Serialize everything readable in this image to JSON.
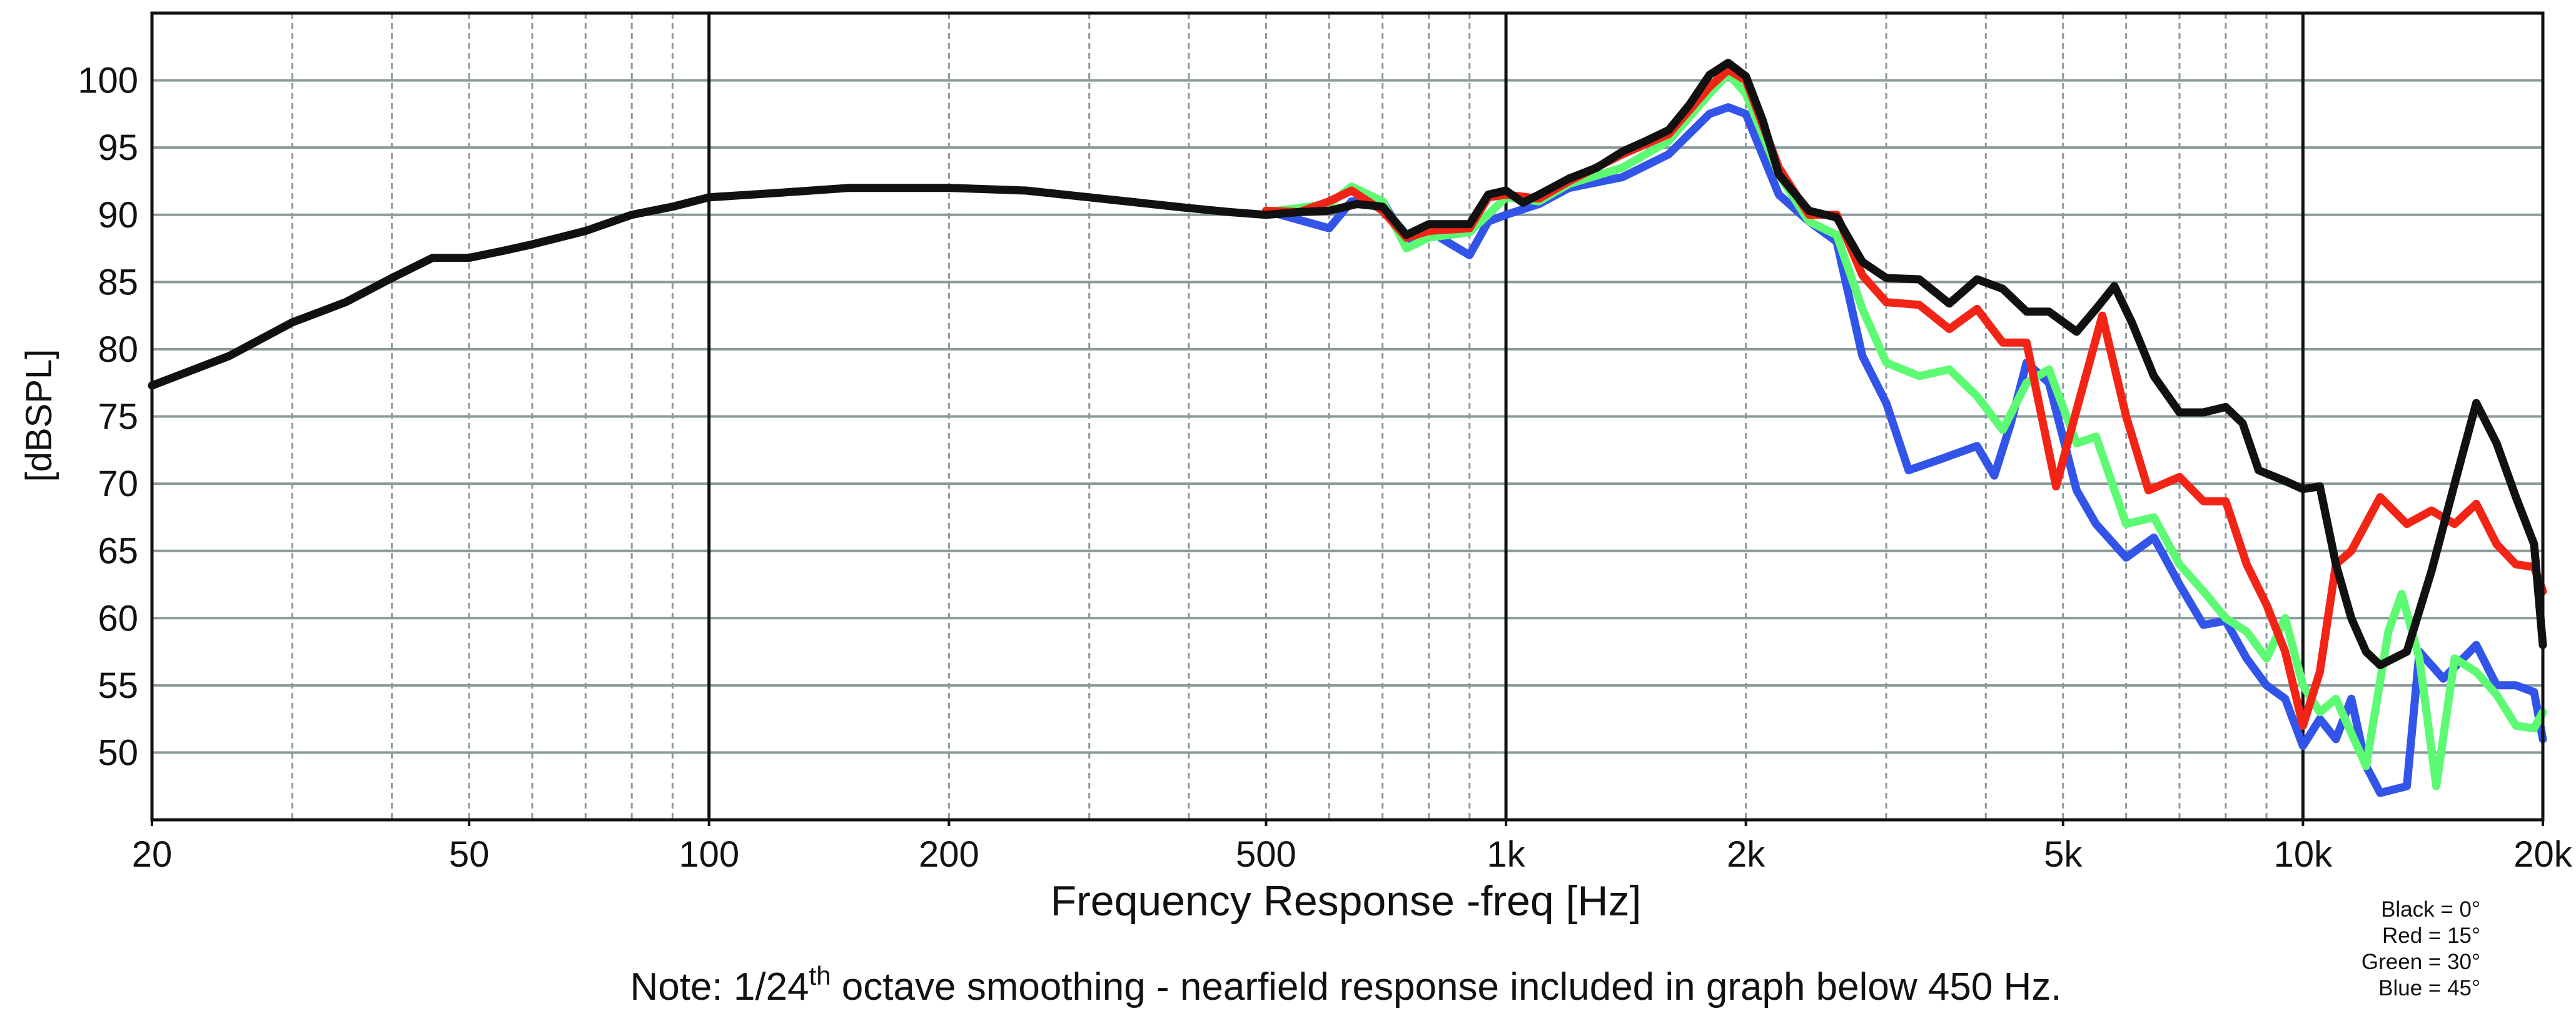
{
  "chart_data": {
    "type": "line",
    "xlabel": "Frequency Response -freq [Hz]",
    "ylabel": "[dBSPL]",
    "note_prefix": "Note: 1/24",
    "note_sup": "th",
    "note_suffix": " octave smoothing - nearfield response included in graph below 450 Hz.",
    "xscale": "log",
    "xlim": [
      20,
      20000
    ],
    "ylim": [
      45,
      105
    ],
    "xticks": [
      20,
      50,
      100,
      200,
      500,
      {
        "value": 1000,
        "label": "1k"
      },
      {
        "value": 2000,
        "label": "2k"
      },
      {
        "value": 5000,
        "label": "5k"
      },
      {
        "value": 10000,
        "label": "10k"
      },
      {
        "value": 20000,
        "label": "20k"
      }
    ],
    "yticks": [
      50,
      55,
      60,
      65,
      70,
      75,
      80,
      85,
      90,
      95,
      100
    ],
    "grid": true,
    "xgrid_dashed": [
      30,
      40,
      50,
      60,
      70,
      80,
      90,
      200,
      300,
      400,
      500,
      600,
      700,
      800,
      900,
      2000,
      3000,
      4000,
      5000,
      6000,
      7000,
      8000,
      9000
    ],
    "xgrid_solid": [
      100,
      1000,
      10000
    ],
    "legend": "bottom-right",
    "series": [
      {
        "name": "Black = 0°",
        "color": "#111111",
        "x": [
          20,
          25,
          30,
          35,
          40,
          45,
          50,
          55,
          60,
          70,
          80,
          90,
          100,
          120,
          150,
          200,
          250,
          300,
          400,
          450,
          500,
          550,
          600,
          650,
          700,
          750,
          800,
          900,
          950,
          1000,
          1050,
          1100,
          1200,
          1300,
          1400,
          1500,
          1600,
          1700,
          1800,
          1900,
          2000,
          2100,
          2200,
          2400,
          2600,
          2800,
          3000,
          3300,
          3600,
          3900,
          4200,
          4500,
          4800,
          5200,
          5500,
          5800,
          6100,
          6500,
          7000,
          7500,
          8000,
          8400,
          8800,
          9500,
          10000,
          10500,
          11000,
          11500,
          12000,
          12500,
          13500,
          14500,
          15500,
          16500,
          17500,
          18500,
          19500,
          20000
        ],
        "values": [
          77.3,
          79.5,
          82,
          83.5,
          85.3,
          86.8,
          86.8,
          87.3,
          87.8,
          88.8,
          90,
          90.6,
          91.3,
          91.6,
          92,
          92,
          91.8,
          91.3,
          90.5,
          90.2,
          90,
          90.2,
          90.3,
          90.8,
          90.6,
          88.5,
          89.3,
          89.3,
          91.5,
          91.8,
          90.9,
          91.5,
          92.7,
          93.5,
          94.7,
          95.5,
          96.3,
          98.2,
          100.4,
          101.3,
          100.3,
          97,
          93,
          90.3,
          89.8,
          86.5,
          85.3,
          85.2,
          83.4,
          85.2,
          84.5,
          82.8,
          82.8,
          81.3,
          83,
          84.7,
          82,
          78,
          75.3,
          75.3,
          75.7,
          74.5,
          71,
          70.2,
          69.6,
          69.8,
          64,
          60,
          57.5,
          56.5,
          57.5,
          63.5,
          70,
          76,
          73,
          69,
          65.5,
          58
        ]
      },
      {
        "name": "Red = 15°",
        "color": "#f22416",
        "x": [
          500,
          550,
          600,
          640,
          700,
          750,
          800,
          900,
          950,
          1000,
          1100,
          1200,
          1400,
          1600,
          1800,
          1900,
          2000,
          2200,
          2400,
          2600,
          2800,
          3000,
          3300,
          3600,
          3900,
          4200,
          4500,
          4700,
          4900,
          5200,
          5600,
          6000,
          6400,
          7000,
          7500,
          8000,
          8500,
          9000,
          9500,
          10000,
          10500,
          11000,
          11500,
          12500,
          13500,
          14500,
          15500,
          16500,
          17500,
          18500,
          19500,
          20000
        ],
        "values": [
          90.3,
          90.2,
          91,
          91.8,
          90.3,
          88.3,
          88.8,
          89,
          91.3,
          91.5,
          91.2,
          92.5,
          94.5,
          96,
          99.5,
          100.8,
          100,
          93.5,
          90,
          90,
          85.5,
          83.5,
          83.3,
          81.5,
          83,
          80.5,
          80.5,
          75,
          69.8,
          75.5,
          82.5,
          75,
          69.5,
          70.5,
          68.7,
          68.7,
          64,
          61,
          57.5,
          52,
          56,
          64,
          65,
          69,
          67,
          68,
          67,
          68.5,
          65.5,
          64,
          63.8,
          62
        ]
      },
      {
        "name": "Green = 30°",
        "color": "#5dfa74",
        "x": [
          500,
          600,
          640,
          700,
          750,
          800,
          900,
          1000,
          1100,
          1200,
          1400,
          1600,
          1800,
          1900,
          2000,
          2200,
          2400,
          2600,
          2800,
          3000,
          3300,
          3600,
          3900,
          4200,
          4500,
          4800,
          5200,
          5500,
          6000,
          6500,
          7000,
          7500,
          8000,
          8500,
          9000,
          9500,
          10000,
          10500,
          11000,
          12000,
          12800,
          13300,
          14000,
          14700,
          15500,
          16500,
          17500,
          18500,
          19500,
          20000
        ],
        "values": [
          90.2,
          90.8,
          92.1,
          91,
          87.5,
          88.3,
          88.7,
          91.3,
          91,
          92.3,
          93.5,
          95.5,
          99,
          100.5,
          99,
          93,
          89.5,
          88.5,
          83,
          79,
          78,
          78.5,
          76.5,
          74,
          77.5,
          78.5,
          73,
          73.5,
          67,
          67.5,
          64,
          62,
          60,
          59,
          57,
          60,
          55,
          53,
          54,
          49,
          59,
          61.8,
          57,
          47.5,
          57,
          56,
          54.3,
          52,
          51.8,
          53
        ]
      },
      {
        "name": "Blue = 45°",
        "color": "#3354e8",
        "x": [
          500,
          600,
          640,
          700,
          750,
          800,
          900,
          950,
          1000,
          1100,
          1200,
          1400,
          1600,
          1800,
          1900,
          2000,
          2200,
          2400,
          2600,
          2800,
          3000,
          3200,
          3500,
          3900,
          4100,
          4300,
          4500,
          4800,
          5200,
          5500,
          6000,
          6500,
          7000,
          7500,
          8000,
          8500,
          9000,
          9500,
          10000,
          10500,
          11000,
          11500,
          12000,
          12500,
          13500,
          14000,
          15000,
          16500,
          17500,
          18500,
          19500,
          20000
        ],
        "values": [
          90.3,
          89,
          91,
          91,
          88,
          88.8,
          87,
          89.5,
          90,
          90.8,
          92,
          92.8,
          94.5,
          97.5,
          98,
          97.5,
          91.5,
          89.5,
          88,
          79.5,
          76,
          71,
          71.8,
          72.8,
          70.6,
          74.5,
          79,
          77.5,
          69.5,
          67,
          64.5,
          66,
          62.5,
          59.5,
          59.8,
          57,
          55,
          54,
          50.5,
          52.5,
          51,
          54,
          49,
          47,
          47.5,
          57.5,
          55.5,
          58,
          55,
          55,
          54.5,
          51
        ]
      }
    ]
  }
}
